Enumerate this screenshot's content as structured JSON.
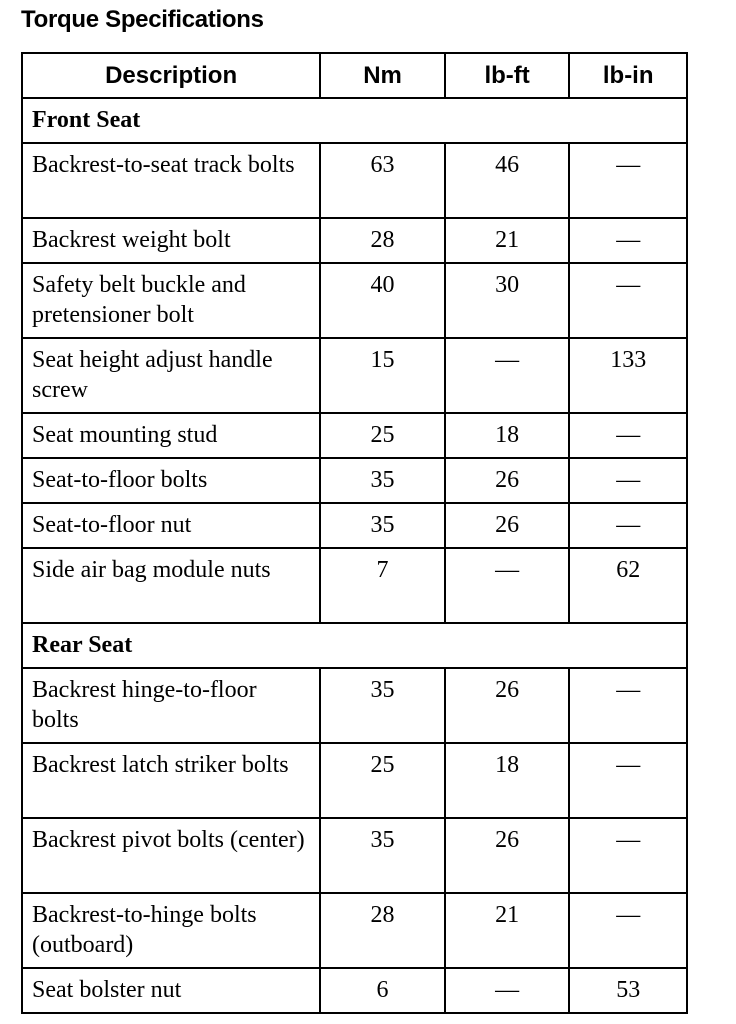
{
  "title": "Torque Specifications",
  "columns": [
    "Description",
    "Nm",
    "lb-ft",
    "lb-in"
  ],
  "sections": [
    {
      "name": "Front Seat",
      "rows": [
        {
          "description": "Backrest-to-seat track bolts",
          "nm": "63",
          "lbft": "46",
          "lbin": "—"
        },
        {
          "description": "Backrest weight bolt",
          "nm": "28",
          "lbft": "21",
          "lbin": "—"
        },
        {
          "description": "Safety belt buckle and pretensioner bolt",
          "nm": "40",
          "lbft": "30",
          "lbin": "—"
        },
        {
          "description": "Seat height adjust handle screw",
          "nm": "15",
          "lbft": "—",
          "lbin": "133"
        },
        {
          "description": "Seat mounting stud",
          "nm": "25",
          "lbft": "18",
          "lbin": "—"
        },
        {
          "description": "Seat-to-floor bolts",
          "nm": "35",
          "lbft": "26",
          "lbin": "—"
        },
        {
          "description": "Seat-to-floor nut",
          "nm": "35",
          "lbft": "26",
          "lbin": "—"
        },
        {
          "description": "Side air bag module nuts",
          "nm": "7",
          "lbft": "—",
          "lbin": "62"
        }
      ]
    },
    {
      "name": "Rear Seat",
      "rows": [
        {
          "description": "Backrest hinge-to-floor bolts",
          "nm": "35",
          "lbft": "26",
          "lbin": "—"
        },
        {
          "description": "Backrest latch striker bolts",
          "nm": "25",
          "lbft": "18",
          "lbin": "—"
        },
        {
          "description": "Backrest pivot bolts (center)",
          "nm": "35",
          "lbft": "26",
          "lbin": "—"
        },
        {
          "description": "Backrest-to-hinge bolts (outboard)",
          "nm": "28",
          "lbft": "21",
          "lbin": "—"
        },
        {
          "description": "Seat bolster nut",
          "nm": "6",
          "lbft": "—",
          "lbin": "53"
        }
      ]
    }
  ]
}
